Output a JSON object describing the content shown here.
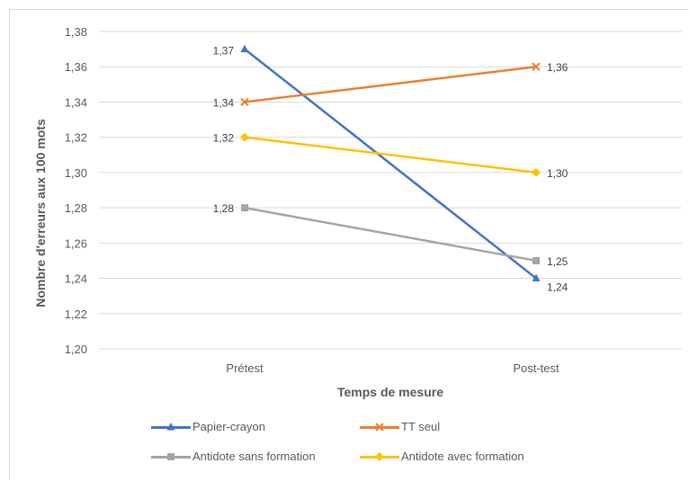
{
  "chart_data": {
    "type": "line",
    "title": "",
    "xlabel": "Temps de mesure",
    "ylabel": "Nombre d'erreurs aux 100 mots",
    "categories": [
      "Prétest",
      "Post-test"
    ],
    "ylim": [
      1.2,
      1.38
    ],
    "yticks": [
      "1,20",
      "1,22",
      "1,24",
      "1,26",
      "1,28",
      "1,30",
      "1,32",
      "1,34",
      "1,36",
      "1,38"
    ],
    "grid": true,
    "legend_position": "bottom",
    "series": [
      {
        "name": "Papier-crayon",
        "values": [
          1.37,
          1.24
        ],
        "labels": [
          "1,37",
          "1,24"
        ],
        "color": "#4472c4",
        "marker": "triangle"
      },
      {
        "name": "TT seul",
        "values": [
          1.34,
          1.36
        ],
        "labels": [
          "1,34",
          "1,36"
        ],
        "color": "#ed7d31",
        "marker": "cross"
      },
      {
        "name": "Antidote sans formation",
        "values": [
          1.28,
          1.25
        ],
        "labels": [
          "1,28",
          "1,25"
        ],
        "color": "#a5a5a5",
        "marker": "square"
      },
      {
        "name": "Antidote avec formation",
        "values": [
          1.32,
          1.3
        ],
        "labels": [
          "1,32",
          "1,30"
        ],
        "color": "#ffc000",
        "marker": "diamond"
      }
    ]
  }
}
